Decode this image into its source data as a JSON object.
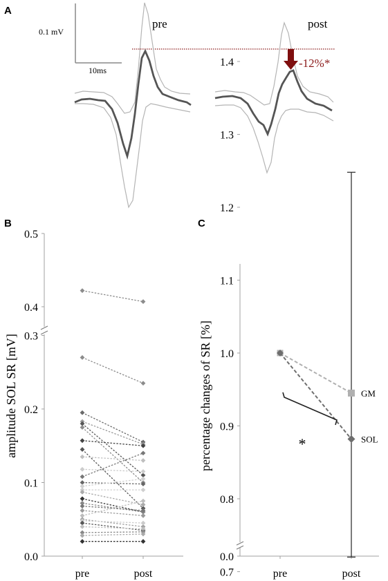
{
  "panel_labels": {
    "a": "A",
    "b": "B",
    "c": "C"
  },
  "chart_data": [
    {
      "type": "line",
      "panel": "A",
      "scale_bar": {
        "amplitude": "0.1 mV",
        "time": "10ms"
      },
      "conditions": [
        "pre",
        "post"
      ],
      "annotation": "-12%*",
      "colors": {
        "mean": "#555555",
        "band": "#b4b4b4",
        "reference": "#8b1a1a",
        "arrow": "#7f0f0f"
      }
    },
    {
      "type": "line",
      "panel": "B",
      "ylabel": "amplitude SOL SR [mV]",
      "categories": [
        "pre",
        "post"
      ],
      "ylim": [
        0,
        0.5
      ],
      "axis_break_between": [
        0.3,
        0.4
      ],
      "yticks": [
        "0.0",
        "0.1",
        "0.2",
        "0.3",
        "0.4",
        "0.5"
      ],
      "series": [
        {
          "pre": 0.422,
          "post": 0.407,
          "color": "#8c8c8c"
        },
        {
          "pre": 0.27,
          "post": 0.235,
          "color": "#8c8c8c"
        },
        {
          "pre": 0.195,
          "post": 0.155,
          "color": "#6a6a6a"
        },
        {
          "pre": 0.183,
          "post": 0.152,
          "color": "#9a9a9a"
        },
        {
          "pre": 0.18,
          "post": 0.11,
          "color": "#555555"
        },
        {
          "pre": 0.175,
          "post": 0.1,
          "color": "#8c8c8c"
        },
        {
          "pre": 0.157,
          "post": 0.15,
          "color": "#444444"
        },
        {
          "pre": 0.145,
          "post": 0.065,
          "color": "#555555"
        },
        {
          "pre": 0.135,
          "post": 0.13,
          "color": "#bfbfbf"
        },
        {
          "pre": 0.118,
          "post": 0.115,
          "color": "#cccccc"
        },
        {
          "pre": 0.108,
          "post": 0.14,
          "color": "#777777"
        },
        {
          "pre": 0.1,
          "post": 0.098,
          "color": "#666666"
        },
        {
          "pre": 0.095,
          "post": 0.105,
          "color": "#d0d0d0"
        },
        {
          "pre": 0.09,
          "post": 0.09,
          "color": "#cfcfcf"
        },
        {
          "pre": 0.087,
          "post": 0.07,
          "color": "#aaaaaa"
        },
        {
          "pre": 0.078,
          "post": 0.06,
          "color": "#333333"
        },
        {
          "pre": 0.072,
          "post": 0.06,
          "color": "#888888"
        },
        {
          "pre": 0.068,
          "post": 0.062,
          "color": "#777777"
        },
        {
          "pre": 0.062,
          "post": 0.055,
          "color": "#9a9a9a"
        },
        {
          "pre": 0.055,
          "post": 0.075,
          "color": "#bdbdbd"
        },
        {
          "pre": 0.05,
          "post": 0.04,
          "color": "#a0a0a0"
        },
        {
          "pre": 0.048,
          "post": 0.045,
          "color": "#cccccc"
        },
        {
          "pre": 0.045,
          "post": 0.035,
          "color": "#555555"
        },
        {
          "pre": 0.04,
          "post": 0.037,
          "color": "#c0c0c0"
        },
        {
          "pre": 0.032,
          "post": 0.033,
          "color": "#888888"
        },
        {
          "pre": 0.028,
          "post": 0.03,
          "color": "#aaaaaa"
        },
        {
          "pre": 0.02,
          "post": 0.02,
          "color": "#333333"
        }
      ]
    },
    {
      "type": "line",
      "panel": "C",
      "ylabel": "percentage changes of SR [%]",
      "categories": [
        "pre",
        "post"
      ],
      "ylim": [
        0.7,
        1.4
      ],
      "axis_zero_label": "0.0",
      "yticks": [
        "0.7",
        "0.8",
        "0.9",
        "1.0",
        "1.1",
        "1.2",
        "1.3",
        "1.4"
      ],
      "series": [
        {
          "name": "GM",
          "values": [
            1.0,
            0.945
          ],
          "color": "#b0b0b0"
        },
        {
          "name": "SOL",
          "values": [
            1.0,
            0.882
          ],
          "color": "#6e6e6e"
        }
      ],
      "error_bar": {
        "x": "post",
        "low": 0.72,
        "high": 1.248
      },
      "significance": "*"
    }
  ]
}
